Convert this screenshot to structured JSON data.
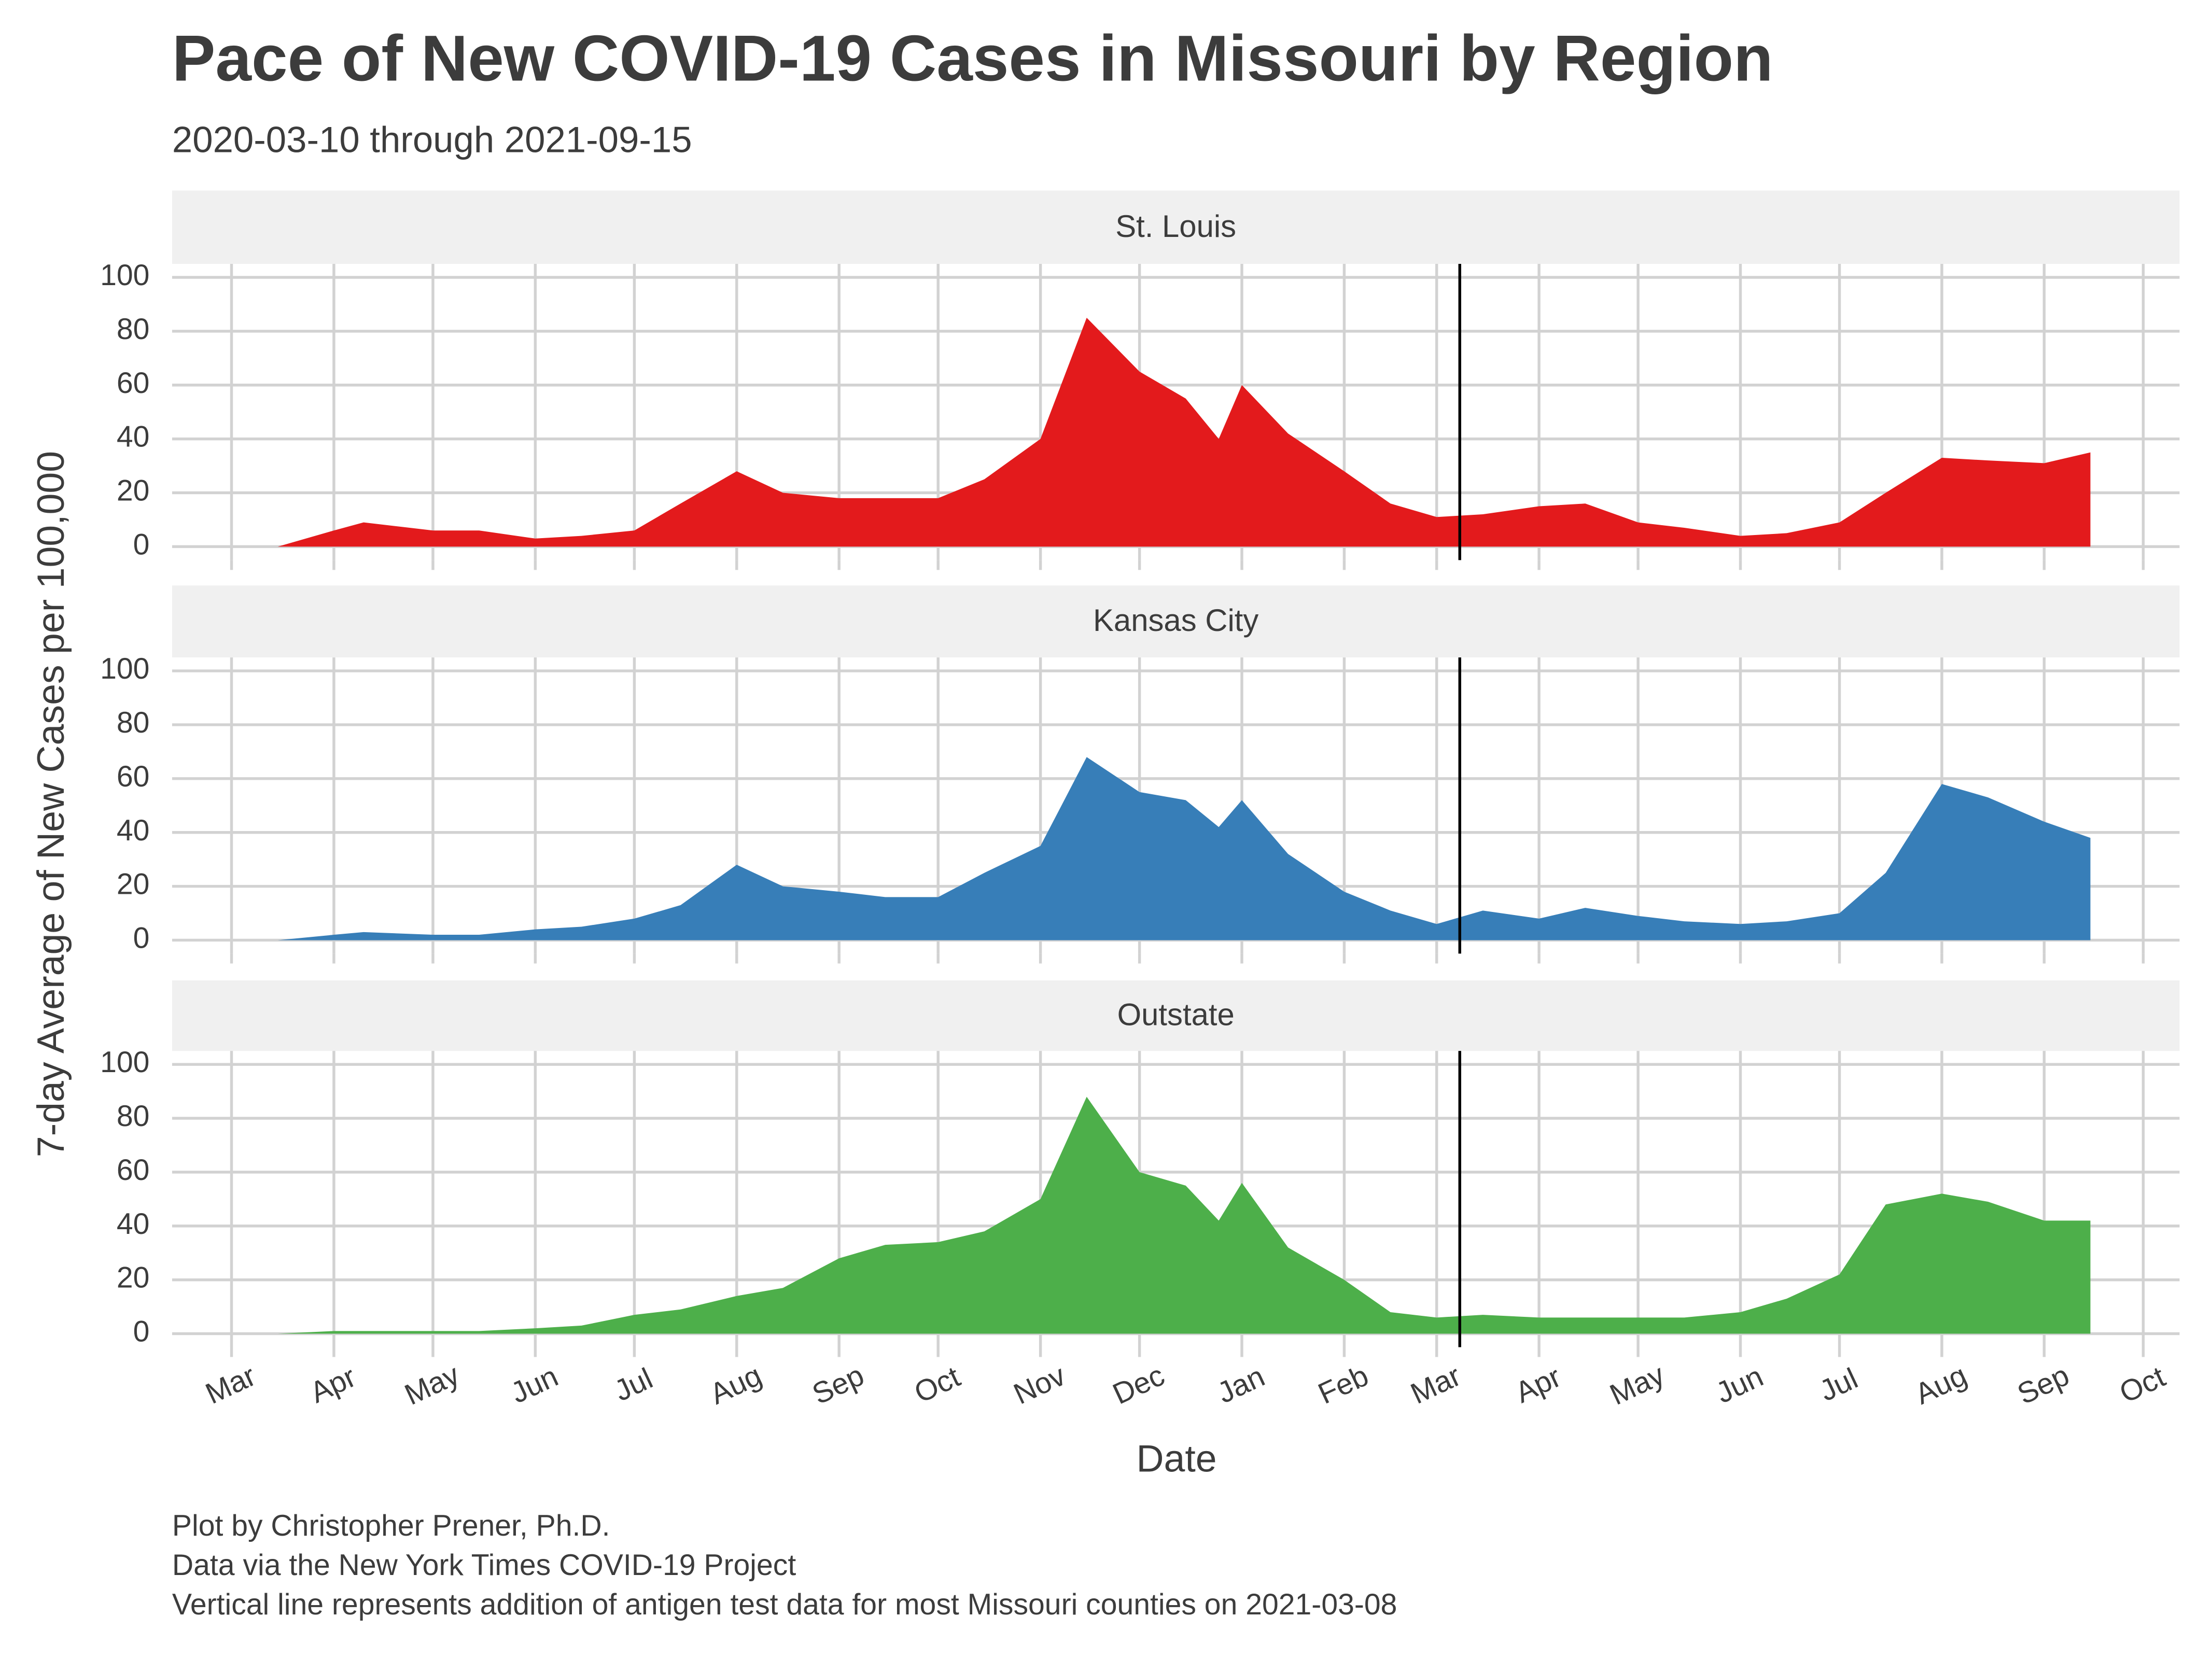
{
  "title": "Pace of New COVID-19 Cases in Missouri by Region",
  "subtitle": "2020-03-10 through 2021-09-15",
  "xlabel": "Date",
  "ylabel": "7-day Average of New Cases per 100,000",
  "caption": [
    "Plot by Christopher Prener, Ph.D.",
    "Data via the New York Times COVID-19 Project",
    "Vertical line represents addition of antigen test data for most Missouri counties on 2021-03-08"
  ],
  "chart_data": [
    {
      "type": "area",
      "title": "St. Louis",
      "color": "#e31a1c",
      "x": [
        "2020-03-10",
        "2020-03-15",
        "2020-04-01",
        "2020-04-10",
        "2020-05-01",
        "2020-05-15",
        "2020-06-01",
        "2020-06-15",
        "2020-07-01",
        "2020-07-15",
        "2020-08-01",
        "2020-08-15",
        "2020-09-01",
        "2020-09-15",
        "2020-10-01",
        "2020-10-15",
        "2020-11-01",
        "2020-11-15",
        "2020-12-01",
        "2020-12-15",
        "2020-12-25",
        "2021-01-01",
        "2021-01-15",
        "2021-02-01",
        "2021-02-15",
        "2021-03-01",
        "2021-03-15",
        "2021-04-01",
        "2021-04-15",
        "2021-05-01",
        "2021-05-15",
        "2021-06-01",
        "2021-06-15",
        "2021-07-01",
        "2021-07-15",
        "2021-08-01",
        "2021-08-15",
        "2021-09-01",
        "2021-09-15"
      ],
      "values": [
        0,
        0,
        6,
        9,
        6,
        6,
        3,
        4,
        6,
        16,
        28,
        20,
        18,
        18,
        18,
        25,
        40,
        85,
        65,
        55,
        40,
        60,
        42,
        28,
        16,
        11,
        12,
        15,
        16,
        9,
        7,
        4,
        5,
        9,
        20,
        33,
        32,
        31,
        35
      ],
      "xlim": [
        "2020-02-12",
        "2021-10-12"
      ],
      "ylim": [
        -5,
        105
      ],
      "yticks": [
        0,
        20,
        40,
        60,
        80,
        100
      ],
      "vline": "2021-03-08",
      "grid": true
    },
    {
      "type": "area",
      "title": "Kansas City",
      "color": "#377eb8",
      "x": [
        "2020-03-10",
        "2020-03-15",
        "2020-04-01",
        "2020-04-10",
        "2020-05-01",
        "2020-05-15",
        "2020-06-01",
        "2020-06-15",
        "2020-07-01",
        "2020-07-15",
        "2020-08-01",
        "2020-08-15",
        "2020-09-01",
        "2020-09-15",
        "2020-10-01",
        "2020-10-15",
        "2020-11-01",
        "2020-11-15",
        "2020-12-01",
        "2020-12-15",
        "2020-12-25",
        "2021-01-01",
        "2021-01-15",
        "2021-02-01",
        "2021-02-15",
        "2021-03-01",
        "2021-03-15",
        "2021-04-01",
        "2021-04-15",
        "2021-05-01",
        "2021-05-15",
        "2021-06-01",
        "2021-06-15",
        "2021-07-01",
        "2021-07-15",
        "2021-08-01",
        "2021-08-15",
        "2021-09-01",
        "2021-09-15"
      ],
      "values": [
        0,
        0,
        2,
        3,
        2,
        2,
        4,
        5,
        8,
        13,
        28,
        20,
        18,
        16,
        16,
        25,
        35,
        68,
        55,
        52,
        42,
        52,
        32,
        18,
        11,
        6,
        11,
        8,
        12,
        9,
        7,
        6,
        7,
        10,
        25,
        58,
        53,
        44,
        38
      ],
      "xlim": [
        "2020-02-12",
        "2021-10-12"
      ],
      "ylim": [
        -5,
        105
      ],
      "yticks": [
        0,
        20,
        40,
        60,
        80,
        100
      ],
      "vline": "2021-03-08",
      "grid": true
    },
    {
      "type": "area",
      "title": "Outstate",
      "color": "#4daf4a",
      "x": [
        "2020-03-10",
        "2020-03-15",
        "2020-04-01",
        "2020-04-10",
        "2020-05-01",
        "2020-05-15",
        "2020-06-01",
        "2020-06-15",
        "2020-07-01",
        "2020-07-15",
        "2020-08-01",
        "2020-08-15",
        "2020-09-01",
        "2020-09-15",
        "2020-10-01",
        "2020-10-15",
        "2020-11-01",
        "2020-11-15",
        "2020-12-01",
        "2020-12-15",
        "2020-12-25",
        "2021-01-01",
        "2021-01-15",
        "2021-02-01",
        "2021-02-15",
        "2021-03-01",
        "2021-03-15",
        "2021-04-01",
        "2021-04-15",
        "2021-05-01",
        "2021-05-15",
        "2021-06-01",
        "2021-06-15",
        "2021-07-01",
        "2021-07-15",
        "2021-08-01",
        "2021-08-15",
        "2021-09-01",
        "2021-09-15"
      ],
      "values": [
        0,
        0,
        1,
        1,
        1,
        1,
        2,
        3,
        7,
        9,
        14,
        17,
        28,
        33,
        34,
        38,
        50,
        88,
        60,
        55,
        42,
        56,
        32,
        20,
        8,
        6,
        7,
        6,
        6,
        6,
        6,
        8,
        13,
        22,
        48,
        52,
        49,
        42,
        42
      ],
      "xlim": [
        "2020-02-12",
        "2021-10-12"
      ],
      "ylim": [
        -5,
        105
      ],
      "yticks": [
        0,
        20,
        40,
        60,
        80,
        100
      ],
      "vline": "2021-03-08",
      "grid": true,
      "xticks": [
        {
          "value": "2020-03-01",
          "label": "Mar"
        },
        {
          "value": "2020-04-01",
          "label": "Apr"
        },
        {
          "value": "2020-05-01",
          "label": "May"
        },
        {
          "value": "2020-06-01",
          "label": "Jun"
        },
        {
          "value": "2020-07-01",
          "label": "Jul"
        },
        {
          "value": "2020-08-01",
          "label": "Aug"
        },
        {
          "value": "2020-09-01",
          "label": "Sep"
        },
        {
          "value": "2020-10-01",
          "label": "Oct"
        },
        {
          "value": "2020-11-01",
          "label": "Nov"
        },
        {
          "value": "2020-12-01",
          "label": "Dec"
        },
        {
          "value": "2021-01-01",
          "label": "Jan"
        },
        {
          "value": "2021-02-01",
          "label": "Feb"
        },
        {
          "value": "2021-03-01",
          "label": "Mar"
        },
        {
          "value": "2021-04-01",
          "label": "Apr"
        },
        {
          "value": "2021-05-01",
          "label": "May"
        },
        {
          "value": "2021-06-01",
          "label": "Jun"
        },
        {
          "value": "2021-07-01",
          "label": "Jul"
        },
        {
          "value": "2021-08-01",
          "label": "Aug"
        },
        {
          "value": "2021-09-01",
          "label": "Sep"
        },
        {
          "value": "2021-10-01",
          "label": "Oct"
        }
      ]
    }
  ]
}
